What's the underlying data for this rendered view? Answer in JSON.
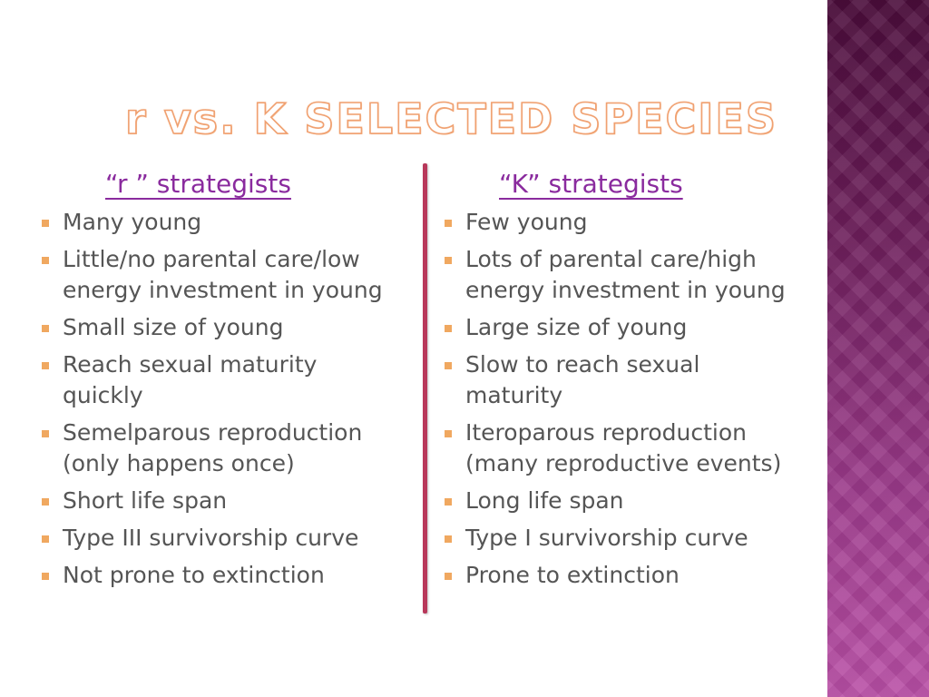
{
  "slide": {
    "title": "r vs. K SELECTED SPECIES",
    "colors": {
      "title_outline": "#f0a070",
      "heading": "#8a2b9e",
      "body_text": "#555555",
      "bullet": "#f0a860",
      "divider": "#b8385a",
      "side_bar": "#6e1f5c"
    },
    "left": {
      "heading": "“r ” strategists",
      "items": [
        "Many young",
        "Little/no parental care/low\nenergy investment in young",
        "Small size of young",
        "Reach sexual maturity\nquickly",
        "Semelparous reproduction\n(only happens once)",
        "Short life span",
        "Type III survivorship curve",
        "Not prone to extinction"
      ]
    },
    "right": {
      "heading": "“K” strategists",
      "items": [
        "Few young",
        "Lots of parental care/high\nenergy investment in young",
        "Large size of young",
        "Slow to reach sexual\nmaturity",
        "Iteroparous reproduction\n(many reproductive events)",
        "Long life span",
        "Type I survivorship curve",
        "Prone to extinction"
      ]
    }
  }
}
